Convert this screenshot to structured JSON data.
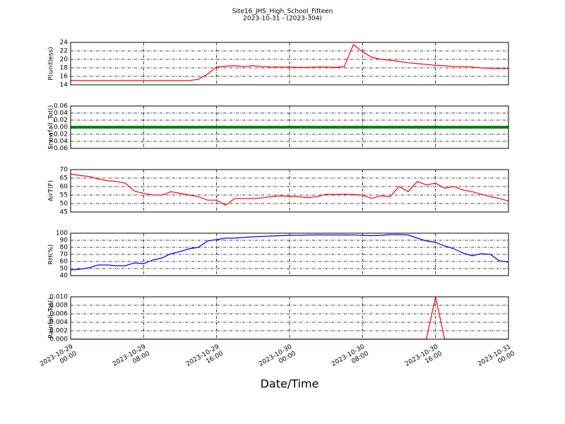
{
  "title": "Site16_JHS_High_School_Fifteen",
  "subtitle": "2023-10-31 - (2023-304)",
  "xlabel": "Date/Time",
  "x": [
    "2023-10-29 00:00",
    "2023-10-29 01:00",
    "2023-10-29 02:00",
    "2023-10-29 03:00",
    "2023-10-29 04:00",
    "2023-10-29 05:00",
    "2023-10-29 06:00",
    "2023-10-29 07:00",
    "2023-10-29 08:00",
    "2023-10-29 09:00",
    "2023-10-29 10:00",
    "2023-10-29 11:00",
    "2023-10-29 12:00",
    "2023-10-29 13:00",
    "2023-10-29 14:00",
    "2023-10-29 15:00",
    "2023-10-29 16:00",
    "2023-10-29 17:00",
    "2023-10-29 18:00",
    "2023-10-29 19:00",
    "2023-10-29 20:00",
    "2023-10-29 21:00",
    "2023-10-29 22:00",
    "2023-10-29 23:00",
    "2023-10-30 00:00",
    "2023-10-30 01:00",
    "2023-10-30 02:00",
    "2023-10-30 03:00",
    "2023-10-30 04:00",
    "2023-10-30 05:00",
    "2023-10-30 06:00",
    "2023-10-30 07:00",
    "2023-10-30 08:00",
    "2023-10-30 09:00",
    "2023-10-30 10:00",
    "2023-10-30 11:00",
    "2023-10-30 12:00",
    "2023-10-30 13:00",
    "2023-10-30 14:00",
    "2023-10-30 15:00",
    "2023-10-30 16:00",
    "2023-10-30 17:00",
    "2023-10-30 18:00",
    "2023-10-30 19:00",
    "2023-10-30 20:00",
    "2023-10-30 21:00",
    "2023-10-30 22:00",
    "2023-10-30 23:00",
    "2023-10-31 00:00"
  ],
  "xlim": [
    "2023-10-29 00:00",
    "2023-10-31 00:00"
  ],
  "xticks": [
    {
      "value": "2023-10-29 00:00",
      "label": "2023-10-29\n00:00"
    },
    {
      "value": "2023-10-29 08:00",
      "label": "2023-10-29\n08:00"
    },
    {
      "value": "2023-10-29 16:00",
      "label": "2023-10-29\n16:00"
    },
    {
      "value": "2023-10-30 00:00",
      "label": "2023-10-30\n00:00"
    },
    {
      "value": "2023-10-30 08:00",
      "label": "2023-10-30\n08:00"
    },
    {
      "value": "2023-10-30 16:00",
      "label": "2023-10-30\n16:00"
    },
    {
      "value": "2023-10-31 00:00",
      "label": "2023-10-31\n00:00"
    }
  ],
  "grid": true,
  "chart_data": [
    {
      "type": "line",
      "ylabel": "P(unitless)",
      "color": "#ff0000",
      "ylim": [
        14,
        24
      ],
      "yticks": [
        14,
        16,
        18,
        20,
        22,
        24
      ],
      "values": [
        15.0,
        15.0,
        15.0,
        15.0,
        15.0,
        15.0,
        15.0,
        15.0,
        15.0,
        15.0,
        15.0,
        15.0,
        15.0,
        15.0,
        15.3,
        16.5,
        18.2,
        18.4,
        18.5,
        18.3,
        18.5,
        18.3,
        18.2,
        18.2,
        18.2,
        18.1,
        18.1,
        18.2,
        18.2,
        18.1,
        18.3,
        23.5,
        21.8,
        20.5,
        20.0,
        19.8,
        19.5,
        19.2,
        19.0,
        18.8,
        18.6,
        18.5,
        18.3,
        18.3,
        18.2,
        18.0,
        17.9,
        17.8,
        17.8
      ]
    },
    {
      "type": "line",
      "ylabel": "Snowfall_Tot()",
      "color": "#008000",
      "ylim": [
        -0.06,
        0.06
      ],
      "yticks": [
        {
          "value": -0.06,
          "label": "−0.06"
        },
        {
          "value": -0.04,
          "label": "−0.04"
        },
        {
          "value": -0.02,
          "label": "−0.02"
        },
        {
          "value": 0,
          "label": "0.00"
        },
        0.02,
        0.04,
        0.06
      ],
      "values": [
        0,
        0,
        0,
        0,
        0,
        0,
        0,
        0,
        0,
        0,
        0,
        0,
        0,
        0,
        0,
        0,
        0,
        0,
        0,
        0,
        0,
        0,
        0,
        0,
        0,
        0,
        0,
        0,
        0,
        0,
        0,
        0,
        0,
        0,
        0,
        0,
        0,
        0,
        0,
        0,
        0,
        0,
        0,
        0,
        0,
        0,
        0,
        0,
        0
      ]
    },
    {
      "type": "line",
      "ylabel": "AirT(F)",
      "color": "#ff0000",
      "ylim": [
        45,
        70
      ],
      "yticks": [
        45,
        50,
        55,
        60,
        65,
        70
      ],
      "values": [
        67.5,
        66.5,
        66,
        64.5,
        63.5,
        63,
        62,
        57.3,
        56,
        55,
        55,
        57,
        56,
        55,
        54,
        52,
        52,
        49,
        53,
        53,
        53,
        53.3,
        54,
        54.5,
        54.2,
        54,
        53.5,
        54,
        55.5,
        55.3,
        55.5,
        55.3,
        55,
        53,
        54.5,
        54,
        60,
        57,
        63,
        61,
        62,
        59,
        60,
        58,
        57,
        55.5,
        54,
        53,
        51.5
      ]
    },
    {
      "type": "line",
      "ylabel": "RH(%)",
      "color": "#0000ff",
      "ylim": [
        40,
        100
      ],
      "yticks": [
        40,
        50,
        60,
        70,
        80,
        90,
        100
      ],
      "values": [
        48,
        49,
        51,
        55,
        55,
        54,
        54,
        58,
        57,
        62,
        65,
        71,
        74,
        78,
        80,
        89,
        91,
        93,
        93,
        94,
        95,
        95.5,
        96,
        96.5,
        97,
        97,
        97.5,
        97.5,
        97.5,
        97.5,
        97.5,
        97.5,
        97,
        96.5,
        97,
        98,
        98,
        97.5,
        93,
        89,
        87,
        82,
        78,
        72,
        68,
        71,
        70,
        61,
        59
      ]
    },
    {
      "type": "line",
      "ylabel": "Rainfall_Tot()",
      "color": "#ff0000",
      "ylim": [
        0,
        0.01
      ],
      "yticks": [
        {
          "value": 0,
          "label": "0.000"
        },
        {
          "value": 0.002,
          "label": "0.002"
        },
        {
          "value": 0.004,
          "label": "0.004"
        },
        {
          "value": 0.006,
          "label": "0.006"
        },
        {
          "value": 0.008,
          "label": "0.008"
        },
        {
          "value": 0.01,
          "label": "0.010"
        }
      ],
      "values": [
        0,
        0,
        0,
        0,
        0,
        0,
        0,
        0,
        0,
        0,
        0,
        0,
        0,
        0,
        0,
        0,
        0,
        0,
        0,
        0,
        0,
        0,
        0,
        0,
        0,
        0,
        0,
        0,
        0,
        0,
        0,
        0,
        0,
        0,
        0,
        0,
        0,
        0,
        0,
        0,
        0.01,
        0,
        0,
        0,
        0,
        0,
        0,
        0,
        0
      ]
    }
  ]
}
